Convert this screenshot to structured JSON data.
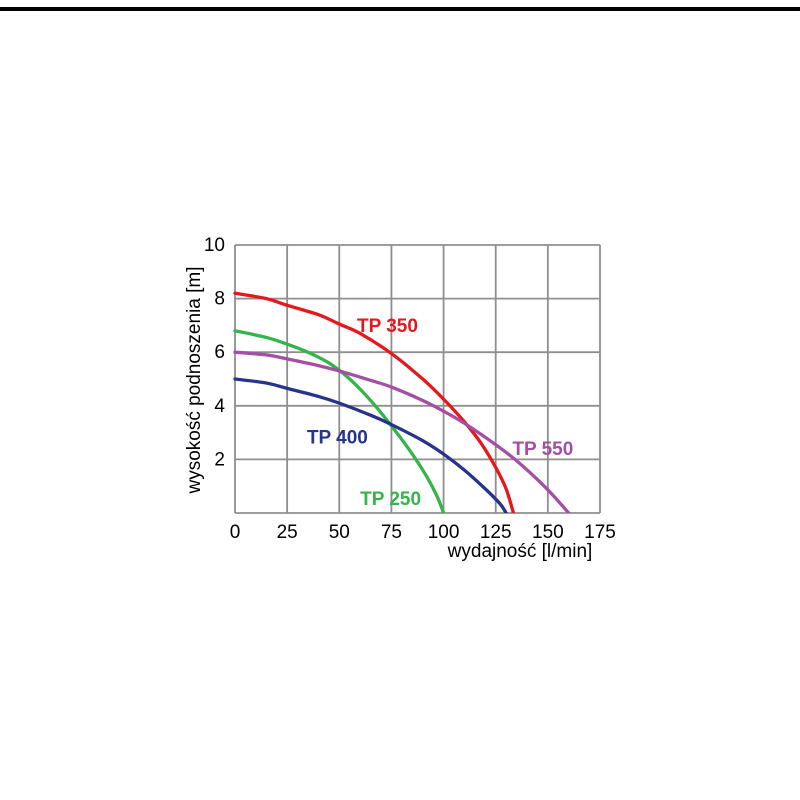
{
  "page": {
    "background": "#ffffff"
  },
  "chart_data": {
    "type": "line",
    "title": "",
    "xlabel": "wydajność  [l/min]",
    "ylabel": "wysokość podnoszenia [m]",
    "xlim": [
      0,
      175
    ],
    "ylim": [
      0,
      10
    ],
    "xticks": [
      "0",
      "25",
      "50",
      "75",
      "100",
      "125",
      "150",
      "175"
    ],
    "yticks": [
      "2",
      "4",
      "6",
      "8",
      "10"
    ],
    "grid": true,
    "grid_color": "#8f8f8f",
    "tick_color": "#000000",
    "legend_position": "inline-labels",
    "series": [
      {
        "name": "TP 350",
        "color": "#e3191e",
        "label": {
          "text": "TP 350",
          "x": 58.5,
          "y": 6.75,
          "anchor": "start"
        },
        "points": [
          [
            0,
            8.2
          ],
          [
            15,
            8.0
          ],
          [
            25,
            7.75
          ],
          [
            40,
            7.4
          ],
          [
            50,
            7.05
          ],
          [
            60,
            6.7
          ],
          [
            75,
            5.95
          ],
          [
            90,
            5.0
          ],
          [
            100,
            4.25
          ],
          [
            110,
            3.4
          ],
          [
            118,
            2.6
          ],
          [
            125,
            1.7
          ],
          [
            130,
            0.9
          ],
          [
            133.5,
            0
          ]
        ]
      },
      {
        "name": "TP 250",
        "color": "#35b44a",
        "label": {
          "text": "TP 250",
          "x": 60,
          "y": 0.3,
          "anchor": "start"
        },
        "points": [
          [
            0,
            6.8
          ],
          [
            15,
            6.55
          ],
          [
            25,
            6.3
          ],
          [
            35,
            6.0
          ],
          [
            45,
            5.6
          ],
          [
            55,
            5.0
          ],
          [
            65,
            4.2
          ],
          [
            75,
            3.25
          ],
          [
            85,
            2.2
          ],
          [
            92,
            1.35
          ],
          [
            97,
            0.6
          ],
          [
            100,
            0
          ]
        ]
      },
      {
        "name": "TP 400",
        "color": "#27348b",
        "label": {
          "text": "TP 400",
          "x": 34.5,
          "y": 2.6,
          "anchor": "start"
        },
        "points": [
          [
            0,
            5.0
          ],
          [
            15,
            4.85
          ],
          [
            25,
            4.65
          ],
          [
            40,
            4.35
          ],
          [
            50,
            4.1
          ],
          [
            65,
            3.65
          ],
          [
            75,
            3.3
          ],
          [
            90,
            2.7
          ],
          [
            100,
            2.2
          ],
          [
            110,
            1.6
          ],
          [
            120,
            0.9
          ],
          [
            127,
            0.35
          ],
          [
            130,
            0
          ]
        ]
      },
      {
        "name": "TP 550",
        "color": "#a44fa3",
        "label": {
          "text": "TP 550",
          "x": 133,
          "y": 2.16,
          "anchor": "start"
        },
        "points": [
          [
            0,
            6.0
          ],
          [
            15,
            5.9
          ],
          [
            25,
            5.75
          ],
          [
            40,
            5.5
          ],
          [
            50,
            5.3
          ],
          [
            65,
            4.95
          ],
          [
            75,
            4.7
          ],
          [
            90,
            4.2
          ],
          [
            100,
            3.8
          ],
          [
            110,
            3.35
          ],
          [
            125,
            2.55
          ],
          [
            135,
            1.95
          ],
          [
            145,
            1.25
          ],
          [
            152,
            0.7
          ],
          [
            160,
            0
          ]
        ]
      }
    ]
  }
}
